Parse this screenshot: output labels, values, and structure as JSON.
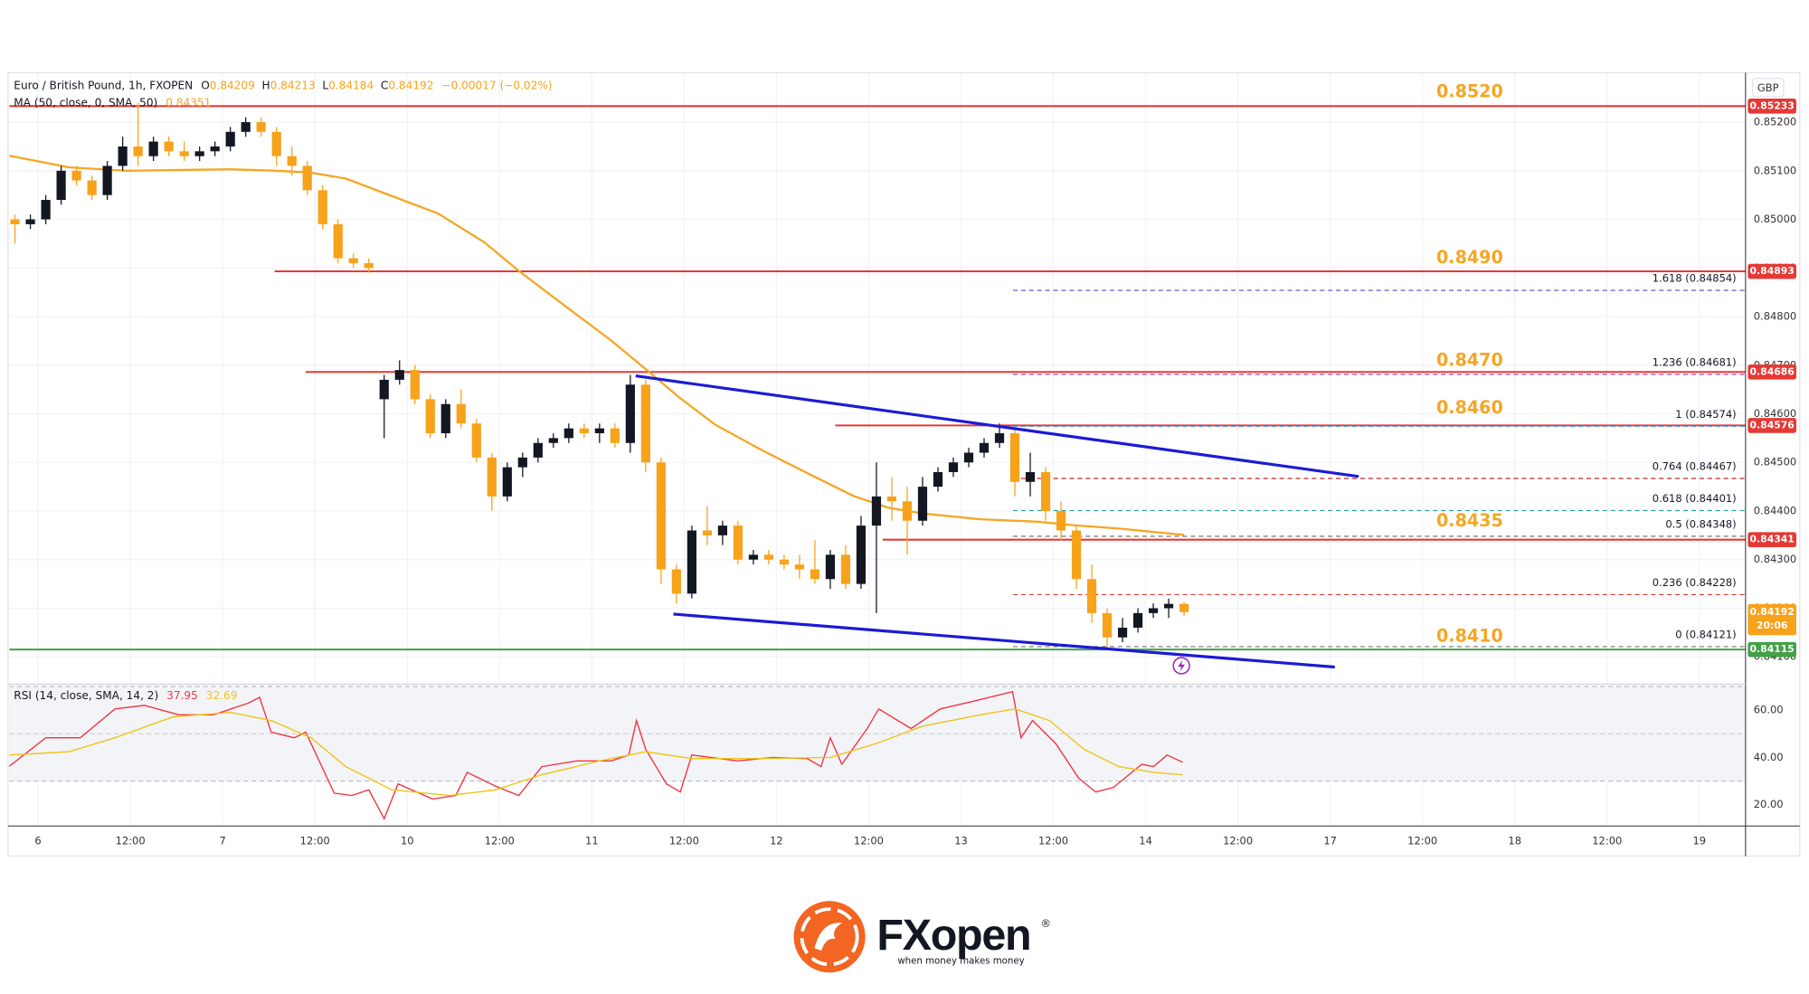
{
  "chart_data": [
    {
      "type": "candlestick",
      "title": "Euro / British Pound, 1h, FXOPEN",
      "ohlc": [
        {
          "label": "O",
          "value": "0.84209"
        },
        {
          "label": "H",
          "value": "0.84213"
        },
        {
          "label": "L",
          "value": "0.84184"
        },
        {
          "label": "C",
          "value": "0.84192"
        }
      ],
      "change": "−0.00017 (−0.02%)",
      "indicator_label": "MA (50, close, 0, SMA, 50)",
      "indicator_value": "0.84351",
      "currency": "GBP",
      "x": [
        -3,
        -1,
        1,
        3,
        5,
        7,
        9,
        11,
        13,
        15,
        17,
        19,
        21,
        23,
        25,
        27,
        29,
        31,
        33,
        35,
        37,
        39,
        41,
        43,
        45,
        47,
        49,
        51,
        53,
        55,
        57,
        59,
        61,
        63,
        65,
        67,
        69,
        71,
        73,
        75,
        77,
        79,
        81,
        83,
        85,
        87,
        89,
        91,
        93,
        95,
        97,
        99,
        101,
        103,
        105,
        107,
        109,
        111,
        113,
        115,
        117,
        119,
        121,
        123,
        125,
        127,
        129,
        131,
        133,
        135,
        137,
        139,
        141,
        143,
        145,
        147,
        149
      ],
      "open": [
        0.85,
        0.8499,
        0.85,
        0.8504,
        0.851,
        0.8508,
        0.8505,
        0.8511,
        0.8515,
        0.8513,
        0.8516,
        0.8514,
        0.8513,
        0.8514,
        0.8515,
        0.8518,
        0.852,
        0.8518,
        0.8513,
        0.8511,
        0.8506,
        0.8499,
        0.8492,
        0.8491,
        0.8463,
        0.8467,
        0.8469,
        0.8463,
        0.8456,
        0.8462,
        0.8458,
        0.8451,
        0.8443,
        0.8449,
        0.8451,
        0.8454,
        0.8455,
        0.8457,
        0.8456,
        0.8457,
        0.8454,
        0.8466,
        0.845,
        0.8428,
        0.8423,
        0.8436,
        0.8435,
        0.8437,
        0.843,
        0.8431,
        0.843,
        0.8429,
        0.8428,
        0.8426,
        0.8431,
        0.8425,
        0.8437,
        0.8443,
        0.8442,
        0.8438,
        0.8445,
        0.8448,
        0.845,
        0.8452,
        0.8454,
        0.8456,
        0.8446,
        0.8448,
        0.844,
        0.8436,
        0.8426,
        0.8419,
        0.8414,
        0.8416,
        0.8419,
        0.842,
        0.84209
      ],
      "high": [
        0.8501,
        0.8501,
        0.8505,
        0.8511,
        0.8511,
        0.8509,
        0.8512,
        0.8517,
        0.8524,
        0.8517,
        0.8517,
        0.8516,
        0.8515,
        0.8516,
        0.8519,
        0.8521,
        0.8521,
        0.8519,
        0.8515,
        0.8512,
        0.8507,
        0.85,
        0.8493,
        0.8492,
        0.8468,
        0.8471,
        0.847,
        0.8464,
        0.8463,
        0.8465,
        0.8459,
        0.8452,
        0.845,
        0.8452,
        0.8455,
        0.8456,
        0.8458,
        0.8458,
        0.8458,
        0.8458,
        0.8468,
        0.8467,
        0.8451,
        0.8429,
        0.8437,
        0.8441,
        0.8438,
        0.8438,
        0.8432,
        0.8432,
        0.8431,
        0.8431,
        0.8434,
        0.8432,
        0.8433,
        0.8439,
        0.845,
        0.8447,
        0.8445,
        0.8447,
        0.8449,
        0.8451,
        0.8453,
        0.8455,
        0.8458,
        0.8457,
        0.8452,
        0.8449,
        0.8442,
        0.8437,
        0.8429,
        0.842,
        0.8418,
        0.842,
        0.8421,
        0.8422,
        0.84213
      ],
      "low": [
        0.8495,
        0.8498,
        0.8499,
        0.8503,
        0.8507,
        0.8504,
        0.8504,
        0.851,
        0.8511,
        0.8512,
        0.8513,
        0.8512,
        0.8512,
        0.8513,
        0.8514,
        0.8517,
        0.8517,
        0.8511,
        0.8509,
        0.8505,
        0.8498,
        0.8491,
        0.849,
        0.8489,
        0.8455,
        0.8466,
        0.8462,
        0.8455,
        0.8455,
        0.8457,
        0.845,
        0.844,
        0.8442,
        0.8447,
        0.845,
        0.8453,
        0.8454,
        0.8455,
        0.8454,
        0.8453,
        0.8452,
        0.8448,
        0.8425,
        0.8421,
        0.8422,
        0.8433,
        0.8433,
        0.8429,
        0.8429,
        0.8429,
        0.8428,
        0.8426,
        0.8425,
        0.8424,
        0.8424,
        0.8424,
        0.8419,
        0.8438,
        0.8431,
        0.8437,
        0.8444,
        0.8447,
        0.8449,
        0.8451,
        0.8453,
        0.8443,
        0.8443,
        0.8438,
        0.8434,
        0.8424,
        0.8417,
        0.8412,
        0.8413,
        0.8415,
        0.8418,
        0.8418,
        0.84184
      ],
      "close": [
        0.8499,
        0.85,
        0.8504,
        0.851,
        0.8508,
        0.8505,
        0.8511,
        0.8515,
        0.8513,
        0.8516,
        0.8514,
        0.8513,
        0.8514,
        0.8515,
        0.8518,
        0.852,
        0.8518,
        0.8513,
        0.8511,
        0.8506,
        0.8499,
        0.8492,
        0.8491,
        0.849,
        0.8467,
        0.8469,
        0.8463,
        0.8456,
        0.8462,
        0.8458,
        0.8451,
        0.8443,
        0.8449,
        0.8451,
        0.8454,
        0.8455,
        0.8457,
        0.8456,
        0.8457,
        0.8454,
        0.8466,
        0.845,
        0.8428,
        0.8423,
        0.8436,
        0.8435,
        0.8437,
        0.843,
        0.8431,
        0.843,
        0.8429,
        0.8428,
        0.8426,
        0.8431,
        0.8425,
        0.8437,
        0.8443,
        0.8442,
        0.8438,
        0.8445,
        0.8448,
        0.845,
        0.8452,
        0.8454,
        0.8456,
        0.8446,
        0.8448,
        0.844,
        0.8436,
        0.8426,
        0.8419,
        0.8414,
        0.8416,
        0.8419,
        0.842,
        0.84209,
        0.84192
      ],
      "up_color": "#131722",
      "down_color": "#f7a21b",
      "ma": {
        "color": "#f5a623",
        "x": [
          -3.75,
          4,
          11.5,
          25,
          31,
          35.5,
          40,
          46,
          52,
          58,
          62.5,
          68.5,
          74.5,
          79,
          83.5,
          88,
          94,
          100,
          106,
          110.5,
          115,
          122.5,
          130,
          134.5,
          140.5,
          145,
          149
        ],
        "values": [
          0.85131,
          0.85107,
          0.851,
          0.85103,
          0.851,
          0.85096,
          0.85084,
          0.85048,
          0.85012,
          0.84953,
          0.84894,
          0.84822,
          0.84751,
          0.84692,
          0.84632,
          0.84578,
          0.84526,
          0.84478,
          0.84431,
          0.84407,
          0.84395,
          0.84383,
          0.84378,
          0.84371,
          0.84364,
          0.84357,
          0.84351
        ]
      },
      "xlim": [
        -3.75,
        222
      ],
      "ylim": [
        0.84051,
        0.85297
      ],
      "xticks": [
        {
          "value": 0,
          "label": "6"
        },
        {
          "value": 12,
          "label": "12:00"
        },
        {
          "value": 24,
          "label": "7"
        },
        {
          "value": 36,
          "label": "12:00"
        },
        {
          "value": 48,
          "label": "10"
        },
        {
          "value": 60,
          "label": "12:00"
        },
        {
          "value": 72,
          "label": "11"
        },
        {
          "value": 84,
          "label": "12:00"
        },
        {
          "value": 96,
          "label": "12"
        },
        {
          "value": 108,
          "label": "12:00"
        },
        {
          "value": 120,
          "label": "13"
        },
        {
          "value": 132,
          "label": "12:00"
        },
        {
          "value": 144,
          "label": "14"
        },
        {
          "value": 156,
          "label": "12:00"
        },
        {
          "value": 168,
          "label": "17"
        },
        {
          "value": 180,
          "label": "12:00"
        },
        {
          "value": 192,
          "label": "18"
        },
        {
          "value": 204,
          "label": "12:00"
        },
        {
          "value": 216,
          "label": "19"
        }
      ],
      "yticks": [
        {
          "value": 0.841,
          "label": "0.84100"
        },
        {
          "value": 0.842,
          "label": "0.84200"
        },
        {
          "value": 0.843,
          "label": "0.84300"
        },
        {
          "value": 0.844,
          "label": "0.84400"
        },
        {
          "value": 0.845,
          "label": "0.84500"
        },
        {
          "value": 0.846,
          "label": "0.84600"
        },
        {
          "value": 0.847,
          "label": "0.84700"
        },
        {
          "value": 0.848,
          "label": "0.84800"
        },
        {
          "value": 0.849,
          "label": "0.84900"
        },
        {
          "value": 0.85,
          "label": "0.85000"
        },
        {
          "value": 0.851,
          "label": "0.85100"
        },
        {
          "value": 0.852,
          "label": "0.85200"
        }
      ],
      "grid": true,
      "levels": [
        {
          "value": 0.85233,
          "color": "#e53935"
        },
        {
          "value": 0.84893,
          "color": "#e53935",
          "start": 30.75
        },
        {
          "value": 0.84686,
          "color": "#e53935",
          "start": 34.8
        },
        {
          "value": 0.84576,
          "color": "#e53935",
          "start": 103.65
        },
        {
          "value": 0.84341,
          "color": "#e53935",
          "start": 109.8
        },
        {
          "value": 0.84115,
          "color": "#43a047"
        }
      ],
      "annotations": [
        "0.8520",
        "0.8490",
        "0.8470",
        "0.8460",
        "0.8435",
        "0.8410"
      ],
      "fib": {
        "start": 126.75,
        "levels": [
          {
            "label": "1.618 (0.84854)",
            "value": 0.84854,
            "color": "#5c5fd6"
          },
          {
            "label": "1.236 (0.84681)",
            "value": 0.84681,
            "color": "#9c27b0"
          },
          {
            "label": "1 (0.84574)",
            "value": 0.84574,
            "color": "#42a5f5"
          },
          {
            "label": "0.764 (0.84467)",
            "value": 0.84467,
            "color": "#c62828"
          },
          {
            "label": "0.618 (0.84401)",
            "value": 0.84401,
            "color": "#26a69a"
          },
          {
            "label": "0.5 (0.84348)",
            "value": 0.84348,
            "color": "#5d6d5e"
          },
          {
            "label": "0.236 (0.84228)",
            "value": 0.84228,
            "color": "#e53935"
          },
          {
            "label": "0 (0.84121)",
            "value": 0.84121,
            "color": "#757575"
          }
        ]
      },
      "trendlines": {
        "color": "#1b1bd6",
        "lines": [
          {
            "x": [
              77.7,
              171.7
            ],
            "values": [
              0.84678,
              0.84471
            ]
          },
          {
            "x": [
              82.6,
              168.6
            ],
            "values": [
              0.84188,
              0.84079
            ]
          }
        ]
      },
      "last": {
        "value": 0.84192,
        "countdown": "20:06",
        "color": "#f7a21b"
      }
    },
    {
      "type": "line",
      "title": "RSI (14, close, SMA, 14, 2)",
      "legend_values": [
        37.95,
        32.69
      ],
      "series": [
        {
          "color": "#f23645",
          "x": [
            -3.8,
            1,
            5.5,
            10,
            13.8,
            18.3,
            22.8,
            27.3,
            28.8,
            30.3,
            33.3,
            34.8,
            38.5,
            40.8,
            43,
            45,
            46.8,
            51.3,
            54.3,
            55.8,
            59.5,
            62.5,
            65.5,
            70,
            74.5,
            76.8,
            77.8,
            79,
            81.7,
            83.5,
            85,
            91,
            95.5,
            100,
            101.8,
            103,
            104.5,
            107.8,
            109.3,
            113.5,
            117.3,
            121.8,
            126.7,
            127.8,
            129.3,
            132.3,
            135.3,
            137.5,
            139.8,
            143.5,
            145,
            146.8,
            148.8
          ],
          "values": [
            36.1,
            48.3,
            48.3,
            60.5,
            62,
            58,
            58,
            62.9,
            65.4,
            50.7,
            48.3,
            50.7,
            24.9,
            23.9,
            26.3,
            14.1,
            28.8,
            22.4,
            23.9,
            33.7,
            27.8,
            23.9,
            36.1,
            38.5,
            38.5,
            41,
            55.6,
            43.4,
            28.8,
            25.4,
            41,
            38.5,
            40,
            39.5,
            36.1,
            48.3,
            37.1,
            52.2,
            60.5,
            52.2,
            60.5,
            63.9,
            67.8,
            48.3,
            55.6,
            45.9,
            31.2,
            25.4,
            27.3,
            37.1,
            36.1,
            41,
            37.95
          ]
        },
        {
          "color": "#f0c419",
          "x": [
            -3.8,
            4,
            10,
            17.5,
            25,
            30.3,
            35.5,
            40,
            46,
            53.5,
            59.5,
            65.5,
            73,
            79,
            85,
            94,
            103,
            109,
            115,
            122.5,
            127,
            131.5,
            136,
            140.5,
            145,
            148.8
          ],
          "values": [
            41,
            42.4,
            48.3,
            57.1,
            59,
            55.6,
            48.3,
            36.1,
            26.3,
            23.9,
            26.3,
            32.7,
            38.5,
            42.4,
            39.5,
            39.5,
            40,
            45.9,
            53.2,
            58,
            60.5,
            55.6,
            43.4,
            36.1,
            33.7,
            32.69
          ]
        }
      ],
      "xlim": [
        -3.75,
        222
      ],
      "ylim": [
        11,
        70
      ],
      "yticks": [
        {
          "value": 20,
          "label": "20.00"
        },
        {
          "value": 40,
          "label": "40.00"
        },
        {
          "value": 60,
          "label": "60.00"
        }
      ],
      "band": [
        30,
        70
      ],
      "midline": 50
    }
  ],
  "logo": {
    "name": "FXopen",
    "mark": "®",
    "tagline": "when money makes money"
  }
}
